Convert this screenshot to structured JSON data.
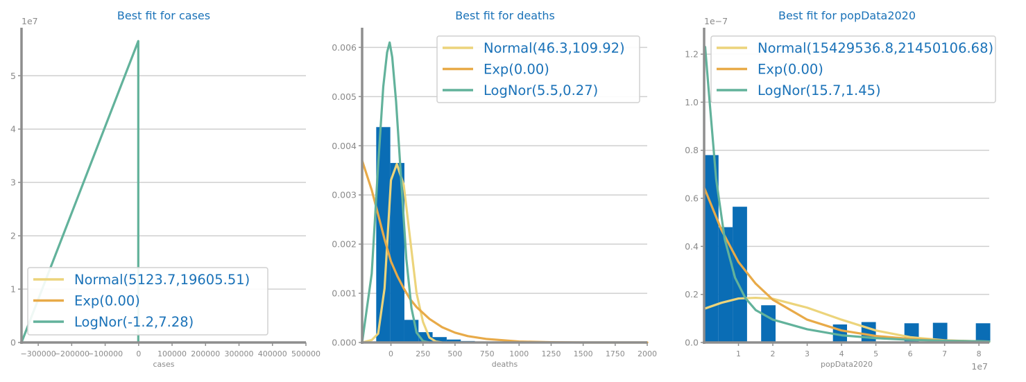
{
  "colors": {
    "bar": "#0a6db5",
    "normal": "#ecd47b",
    "exp": "#e8aa48",
    "lognorm": "#62b29b",
    "text": "#1a72b8",
    "tick": "#8a8a8a"
  },
  "chart_data": [
    {
      "type": "line",
      "title": "Best fit for cases",
      "xlabel": "cases",
      "ylabel": "",
      "y_offset_label": "1e7",
      "x_offset_label": "",
      "xlim": [
        -350000,
        500000
      ],
      "ylim": [
        0,
        59000000
      ],
      "xticks": [
        -300000,
        -200000,
        -100000,
        0,
        100000,
        200000,
        300000,
        400000,
        500000
      ],
      "xtick_labels": [
        "−300000",
        "−200000",
        "−100000",
        "0",
        "100000",
        "200000",
        "300000",
        "400000",
        "500000"
      ],
      "yticks": [
        0,
        10000000,
        20000000,
        30000000,
        40000000,
        50000000
      ],
      "ytick_labels": [
        "0",
        "1",
        "2",
        "3",
        "4",
        "5"
      ],
      "grid": true,
      "legend_position": "lower-left",
      "bars": [],
      "series": [
        {
          "name": "Normal(5123.7,19605.51)",
          "color_key": "normal",
          "points": []
        },
        {
          "name": "Exp(0.00)",
          "color_key": "exp",
          "points": []
        },
        {
          "name": "LogNor(-1.2,7.28)",
          "color_key": "lognorm",
          "points": [
            [
              -350000,
              0
            ],
            [
              -1000,
              56500000
            ],
            [
              -1000,
              0
            ]
          ]
        }
      ]
    },
    {
      "type": "line",
      "title": "Best fit for deaths",
      "xlabel": "deaths",
      "ylabel": "",
      "y_offset_label": "",
      "x_offset_label": "",
      "xlim": [
        -225,
        2000
      ],
      "ylim": [
        0,
        0.0064
      ],
      "xticks": [
        0,
        250,
        500,
        750,
        1000,
        1250,
        1500,
        1750,
        2000
      ],
      "xtick_labels": [
        "0",
        "250",
        "500",
        "750",
        "1000",
        "1250",
        "1500",
        "1750",
        "2000"
      ],
      "yticks": [
        0,
        0.001,
        0.002,
        0.003,
        0.004,
        0.005,
        0.006
      ],
      "ytick_labels": [
        "0.000",
        "0.001",
        "0.002",
        "0.003",
        "0.004",
        "0.005",
        "0.006"
      ],
      "grid": true,
      "legend_position": "top-right",
      "bars": [
        {
          "x0": -115,
          "x1": -5,
          "value": 0.00438
        },
        {
          "x0": -5,
          "x1": 105,
          "value": 0.00365
        },
        {
          "x0": 105,
          "x1": 215,
          "value": 0.00046
        },
        {
          "x0": 215,
          "x1": 325,
          "value": 0.00021
        },
        {
          "x0": 325,
          "x1": 435,
          "value": 0.00011
        },
        {
          "x0": 435,
          "x1": 545,
          "value": 6e-05
        },
        {
          "x0": 545,
          "x1": 655,
          "value": 3e-05
        }
      ],
      "series": [
        {
          "name": "Normal(46.3,109.92)",
          "color_key": "normal",
          "points": [
            [
              -225,
              0.0
            ],
            [
              -150,
              5e-05
            ],
            [
              -100,
              0.00018
            ],
            [
              -50,
              0.0011
            ],
            [
              0,
              0.0033
            ],
            [
              46,
              0.00363
            ],
            [
              100,
              0.0032
            ],
            [
              150,
              0.0021
            ],
            [
              200,
              0.001
            ],
            [
              250,
              0.00042
            ],
            [
              300,
              0.0001
            ],
            [
              350,
              2e-05
            ],
            [
              400,
              0.0
            ]
          ]
        },
        {
          "name": "Exp(0.00)",
          "color_key": "exp",
          "points": [
            [
              -225,
              0.0037
            ],
            [
              -150,
              0.0031
            ],
            [
              -100,
              0.0026
            ],
            [
              -50,
              0.0021
            ],
            [
              0,
              0.00165
            ],
            [
              50,
              0.00135
            ],
            [
              100,
              0.0011
            ],
            [
              150,
              0.00088
            ],
            [
              200,
              0.00072
            ],
            [
              300,
              0.00048
            ],
            [
              400,
              0.00031
            ],
            [
              500,
              0.0002
            ],
            [
              600,
              0.00013
            ],
            [
              750,
              7e-05
            ],
            [
              1000,
              2e-05
            ],
            [
              1250,
              5e-06
            ],
            [
              1500,
              0.0
            ],
            [
              2000,
              0.0
            ]
          ]
        },
        {
          "name": "LogNor(5.5,0.27)",
          "color_key": "lognorm",
          "points": [
            [
              -225,
              0.0
            ],
            [
              -150,
              0.0014
            ],
            [
              -100,
              0.0036
            ],
            [
              -60,
              0.0052
            ],
            [
              -30,
              0.0059
            ],
            [
              -10,
              0.0061
            ],
            [
              10,
              0.0058
            ],
            [
              40,
              0.0049
            ],
            [
              80,
              0.0033
            ],
            [
              120,
              0.0017
            ],
            [
              160,
              0.0007
            ],
            [
              200,
              0.0002
            ],
            [
              250,
              3e-05
            ],
            [
              300,
              0.0
            ]
          ]
        }
      ]
    },
    {
      "type": "line",
      "title": "Best fit for popData2020",
      "xlabel": "popData2020",
      "ylabel": "",
      "y_offset_label": "1e−7",
      "x_offset_label": "1e7",
      "xlim": [
        0,
        83000000
      ],
      "ylim": [
        0,
        1.31e-07
      ],
      "xticks": [
        10000000,
        20000000,
        30000000,
        40000000,
        50000000,
        60000000,
        70000000,
        80000000
      ],
      "xtick_labels": [
        "1",
        "2",
        "3",
        "4",
        "5",
        "6",
        "7",
        "8"
      ],
      "yticks": [
        0,
        2e-08,
        4e-08,
        6e-08,
        8e-08,
        1e-07,
        1.2e-07
      ],
      "ytick_labels": [
        "0.0",
        "0.2",
        "0.4",
        "0.6",
        "0.8",
        "1.0",
        "1.2"
      ],
      "grid": true,
      "legend_position": "top-right",
      "bars": [
        {
          "x0": 0,
          "x1": 4200000,
          "value": 7.8e-08
        },
        {
          "x0": 4200000,
          "x1": 8300000,
          "value": 4.8e-08
        },
        {
          "x0": 8300000,
          "x1": 12500000,
          "value": 5.65e-08
        },
        {
          "x0": 16600000,
          "x1": 20800000,
          "value": 1.55e-08
        },
        {
          "x0": 37500000,
          "x1": 41600000,
          "value": 7.5e-09
        },
        {
          "x0": 45800000,
          "x1": 50000000,
          "value": 8.5e-09
        },
        {
          "x0": 58300000,
          "x1": 62500000,
          "value": 8e-09
        },
        {
          "x0": 66600000,
          "x1": 70800000,
          "value": 8.2e-09
        },
        {
          "x0": 79100000,
          "x1": 83300000,
          "value": 8e-09
        }
      ],
      "series": [
        {
          "name": "Normal(15429536.8,21450106.68)",
          "color_key": "normal",
          "points": [
            [
              0,
              1.4e-08
            ],
            [
              5000000,
              1.65e-08
            ],
            [
              10000000,
              1.83e-08
            ],
            [
              15000000,
              1.86e-08
            ],
            [
              20000000,
              1.82e-08
            ],
            [
              30000000,
              1.45e-08
            ],
            [
              40000000,
              9.5e-09
            ],
            [
              50000000,
              5e-09
            ],
            [
              60000000,
              2.2e-09
            ],
            [
              70000000,
              9e-10
            ],
            [
              83000000,
              3e-10
            ]
          ]
        },
        {
          "name": "Exp(0.00)",
          "color_key": "exp",
          "points": [
            [
              0,
              6.45e-08
            ],
            [
              5000000,
              4.7e-08
            ],
            [
              10000000,
              3.35e-08
            ],
            [
              15000000,
              2.45e-08
            ],
            [
              20000000,
              1.78e-08
            ],
            [
              30000000,
              9.5e-09
            ],
            [
              40000000,
              5e-09
            ],
            [
              50000000,
              2.7e-09
            ],
            [
              60000000,
              1.5e-09
            ],
            [
              70000000,
              8e-10
            ],
            [
              83000000,
              4e-10
            ]
          ]
        },
        {
          "name": "LogNor(15.7,1.45)",
          "color_key": "lognorm",
          "points": [
            [
              0,
              1.18e-07
            ],
            [
              300000,
              1.23e-07
            ],
            [
              1500000,
              1.02e-07
            ],
            [
              3500000,
              6.8e-08
            ],
            [
              6000000,
              4.3e-08
            ],
            [
              9000000,
              2.7e-08
            ],
            [
              12000000,
              1.85e-08
            ],
            [
              15000000,
              1.35e-08
            ],
            [
              20000000,
              9.5e-09
            ],
            [
              30000000,
              5.5e-09
            ],
            [
              40000000,
              3e-09
            ],
            [
              50000000,
              1.8e-09
            ],
            [
              60000000,
              1.1e-09
            ],
            [
              70000000,
              7e-10
            ],
            [
              83000000,
              4e-10
            ]
          ]
        }
      ]
    }
  ]
}
